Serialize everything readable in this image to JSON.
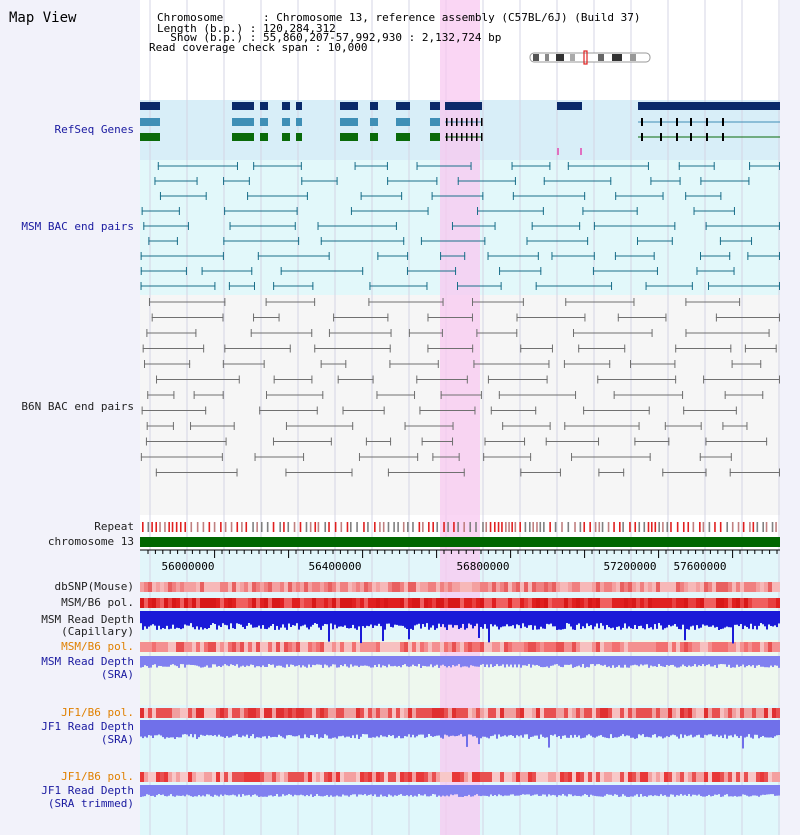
{
  "app": {
    "title": "Map View"
  },
  "header": {
    "line1": "Chromosome      : Chromosome 13, reference assembly (C57BL/6J) (Build 37)",
    "line2": "Length (b.p.) : 120,284,312",
    "line3": "  Show (b.p.) : 55,860,207-57,992,930 : 2,132,724 bp",
    "line4": "Read coverage check span : 10,000"
  },
  "tracks": {
    "refseq": "RefSeq Genes",
    "msm_bac": "MSM BAC end pairs",
    "b6n_bac": "B6N BAC end pairs",
    "repeat": "Repeat",
    "chromosome": "chromosome 13",
    "dbsnp": "dbSNP(Mouse)",
    "msm_b6_pol1": "MSM/B6 pol.",
    "msm_depth_cap_1": "MSM Read Depth",
    "msm_depth_cap_2": "(Capillary)",
    "msm_b6_pol2": "MSM/B6 pol.",
    "msm_depth_sra_1": "MSM Read Depth",
    "msm_depth_sra_2": "(SRA)",
    "jf1_b6_pol1": "JF1/B6 pol.",
    "jf1_depth_sra_1": "JF1 Read Depth",
    "jf1_depth_sra_2": "(SRA)",
    "jf1_b6_pol2": "JF1/B6 pol.",
    "jf1_depth_trim_1": "JF1 Read Depth",
    "jf1_depth_trim_2": "(SRA trimmed)"
  },
  "axis": {
    "ticks": [
      "56000000",
      "56400000",
      "56800000",
      "57200000",
      "57600000"
    ]
  },
  "colors": {
    "highlight": "#f8c8f0",
    "msm_pair": "#1a6f8a",
    "b6n_pair": "#707070",
    "chromosome": "#006600",
    "gene_dark": "#0a2a6a",
    "gene_mid": "#3f8fb6",
    "gene_green": "#0a6a0a"
  }
}
